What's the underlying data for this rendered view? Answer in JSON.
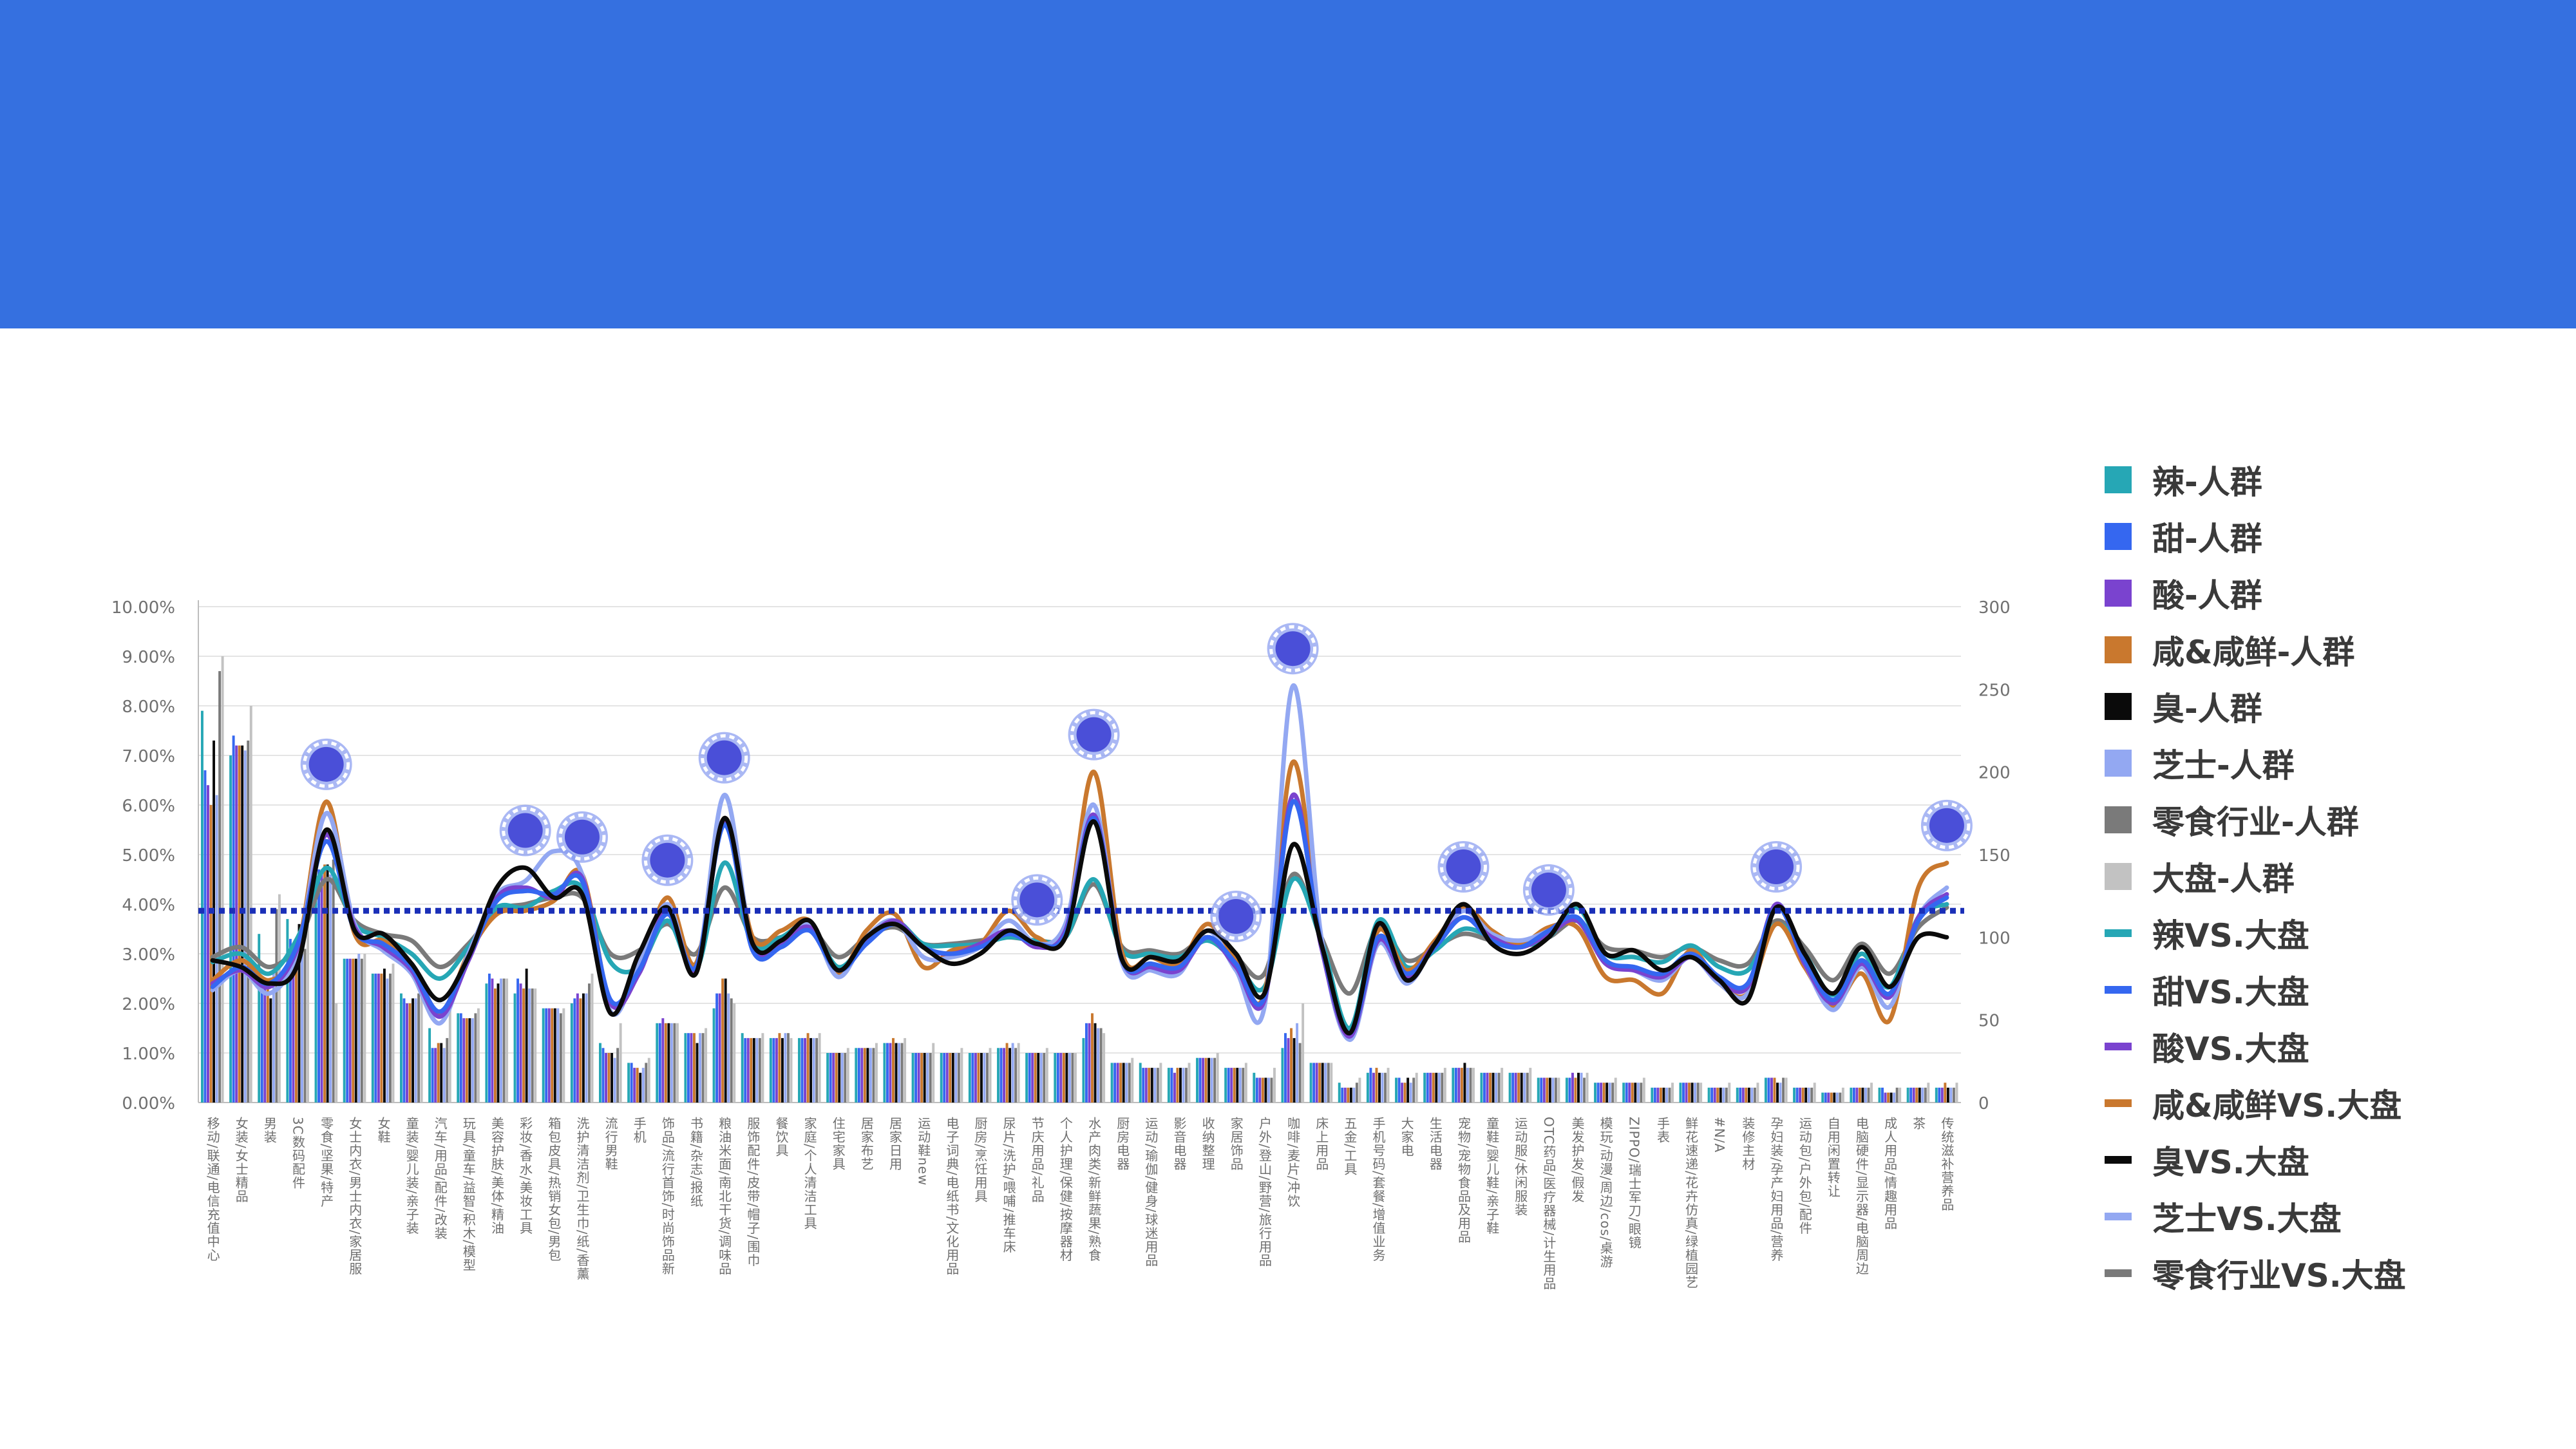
{
  "colors": {
    "header": "#3570e0",
    "reference_line": "#1a2fb8",
    "marker": "#4a4fd8"
  },
  "legend": {
    "items": [
      {
        "label": "辣-人群",
        "kind": "bar",
        "color": "#26a7b5"
      },
      {
        "label": "甜-人群",
        "kind": "bar",
        "color": "#3567f0"
      },
      {
        "label": "酸-人群",
        "kind": "bar",
        "color": "#7a43cf"
      },
      {
        "label": "咸&咸鲜-人群",
        "kind": "bar",
        "color": "#c9782e"
      },
      {
        "label": "臭-人群",
        "kind": "bar",
        "color": "#0a0a0a"
      },
      {
        "label": "芝士-人群",
        "kind": "bar",
        "color": "#93a8f2"
      },
      {
        "label": "零食行业-人群",
        "kind": "bar",
        "color": "#7a7a7a"
      },
      {
        "label": "大盘-人群",
        "kind": "bar",
        "color": "#c2c2c2"
      },
      {
        "label": "辣VS.大盘",
        "kind": "line",
        "color": "#26a7b5"
      },
      {
        "label": "甜VS.大盘",
        "kind": "line",
        "color": "#3567f0"
      },
      {
        "label": "酸VS.大盘",
        "kind": "line",
        "color": "#7a43cf"
      },
      {
        "label": "咸&咸鲜VS.大盘",
        "kind": "line",
        "color": "#c9782e"
      },
      {
        "label": "臭VS.大盘",
        "kind": "line",
        "color": "#0a0a0a"
      },
      {
        "label": "芝士VS.大盘",
        "kind": "line",
        "color": "#93a8f2"
      },
      {
        "label": "零食行业VS.大盘",
        "kind": "line",
        "color": "#7a7a7a"
      }
    ]
  },
  "chart_data": {
    "type": "bar",
    "title": "",
    "left_axis": {
      "ticks": [
        "0.00%",
        "1.00%",
        "2.00%",
        "3.00%",
        "4.00%",
        "5.00%",
        "6.00%",
        "7.00%",
        "8.00%",
        "9.00%",
        "10.00%"
      ],
      "min": 0,
      "max": 10
    },
    "right_axis": {
      "ticks": [
        "0",
        "50",
        "100",
        "150",
        "200",
        "250",
        "300"
      ],
      "min": 0,
      "max": 300
    },
    "reference_line": {
      "axis": "right",
      "value": 116,
      "style": "dotted"
    },
    "grid": true,
    "legend_position": "right",
    "categories": [
      "移动/联通/电信充值中心",
      "女装/女士精品",
      "男装",
      "3C数码配件",
      "零食/坚果/特产",
      "女士内衣/男士内衣/家居服",
      "女鞋",
      "童装/婴儿装/亲子装",
      "汽车/用品/配件/改装",
      "玩具/童车/益智/积木/模型",
      "美容护肤/美体/精油",
      "彩妆/香水/美妆工具",
      "箱包皮具/热销女包/男包",
      "洗护清洁剂/卫生巾/纸/香薰",
      "流行男鞋",
      "手机",
      "饰品/流行首饰/时尚饰品新",
      "书籍/杂志/报纸",
      "粮油米面/南北干货/调味品",
      "服饰配件/皮带/帽子/围巾",
      "餐饮具",
      "家庭/个人清洁工具",
      "住宅家具",
      "居家布艺",
      "居家日用",
      "运动鞋new",
      "电子词典/电纸书/文化用品",
      "厨房/烹饪用具",
      "尿片/洗护/喂哺/推车床",
      "节庆用品/礼品",
      "个人护理/保健/按摩器材",
      "水产肉类/新鲜蔬果/熟食",
      "厨房电器",
      "运动/瑜伽/健身/球迷用品",
      "影音电器",
      "收纳整理",
      "家居饰品",
      "户外/登山/野营/旅行用品",
      "咖啡/麦片/冲饮",
      "床上用品",
      "五金/工具",
      "手机号码/套餐/增值业务",
      "大家电",
      "生活电器",
      "宠物/宠物食品及用品",
      "童鞋/婴儿鞋/亲子鞋",
      "运动服/休闲服装",
      "OTC药品/医疗器械/计生用品",
      "美发护发/假发",
      "模玩/动漫/周边/cos/桌游",
      "ZIPPO/瑞士军刀/眼镜",
      "手表",
      "鲜花速递/花卉仿真/绿植园艺",
      "#N/A",
      "装修主材",
      "孕妇装/孕产妇用品/营养",
      "运动包/户外包/配件",
      "自用闲置转让",
      "电脑硬件/显示器/电脑周边",
      "成人用品/情趣用品",
      "茶",
      "传统滋补营养品"
    ],
    "label_categories": [
      "移动/联通/电信充值中心",
      "女装/女士精品",
      "男装",
      "3C数码配件",
      "零食/坚果/特产",
      "女士内衣/男士内衣/家居服",
      "女鞋",
      "童装/婴儿装/亲子装",
      "汽车/用品/配件/改装",
      "玩具/童车/益智/积木/模型",
      "美容护肤/美体/精油",
      "彩妆/香水/美妆工具",
      "箱包皮具/热销女包/男包",
      "洗护清洁剂/卫生巾/纸/香薰",
      "流行男鞋",
      "手机",
      "饰品/流行首饰/时尚饰品新",
      "书籍/杂志/报纸",
      "粮油米面/南北干货/调味品",
      "服饰配件/皮带/帽子/围巾",
      "餐饮具",
      "家庭/个人清洁工具",
      "住宅家具",
      "居家布艺",
      "居家日用",
      "运动鞋new",
      "电子词典/电纸书/文化用品",
      "厨房/烹饪用具",
      "尿片/洗护/喂哺/推车床",
      "节庆用品/礼品",
      "个人护理/保健/按摩器材",
      "水产肉类/新鲜蔬果/熟食",
      "厨房电器",
      "运动/瑜伽/健身/球迷用品",
      "影音电器",
      "收纳整理",
      "家居饰品",
      "户外/登山/野营/旅行用品",
      "咖啡/麦片/冲饮",
      "床上用品",
      "五金/工具",
      "手机号码/套餐/增值业务",
      "大家电",
      "生活电器",
      "宠物/宠物食品及用品",
      "童鞋/婴儿鞋/亲子鞋",
      "运动服/休闲服装",
      "OTC药品/医疗器械/计生用品",
      "美发护发/假发",
      "模玩/动漫/周边/cos/桌游",
      "ZIPPO/瑞士军刀/眼镜",
      "手表",
      "鲜花速递/花卉仿真/绿植园艺",
      "#N/A",
      "装修主材",
      "孕妇装/孕产妇用品/营养",
      "运动包/户外包/配件",
      "自用闲置转让",
      "电脑硬件/显示器/电脑周边",
      "成人用品/情趣用品",
      "茶",
      "传统滋补营养品"
    ],
    "bar_groups_pct": [
      [
        7.9,
        6.7,
        6.4,
        6.0,
        7.3,
        6.2,
        8.7,
        9.0
      ],
      [
        7.0,
        7.4,
        7.2,
        7.2,
        7.2,
        7.1,
        7.3,
        8.0
      ],
      [
        3.4,
        2.4,
        2.4,
        2.3,
        2.1,
        2.6,
        3.9,
        4.2
      ],
      [
        3.7,
        3.3,
        3.0,
        3.2,
        3.6,
        3.0,
        3.1,
        3.6
      ],
      [
        4.7,
        4.7,
        4.7,
        4.8,
        4.8,
        4.6,
        4.9,
        2.0
      ],
      [
        2.9,
        2.9,
        2.9,
        2.9,
        2.9,
        3.0,
        2.9,
        3.0
      ],
      [
        2.6,
        2.6,
        2.6,
        2.6,
        2.7,
        2.5,
        2.6,
        2.8
      ],
      [
        2.2,
        2.1,
        2.0,
        2.0,
        2.1,
        2.1,
        2.2,
        2.3
      ],
      [
        1.5,
        1.1,
        1.1,
        1.2,
        1.2,
        1.1,
        1.3,
        1.9
      ],
      [
        1.8,
        1.8,
        1.7,
        1.7,
        1.7,
        1.7,
        1.8,
        1.9
      ],
      [
        2.4,
        2.6,
        2.5,
        2.3,
        2.4,
        2.5,
        2.5,
        2.5
      ],
      [
        2.2,
        2.5,
        2.4,
        2.3,
        2.7,
        2.3,
        2.3,
        2.3
      ],
      [
        1.9,
        1.9,
        1.9,
        1.9,
        1.9,
        1.9,
        1.8,
        1.9
      ],
      [
        2.0,
        2.1,
        2.2,
        2.1,
        2.2,
        2.2,
        2.4,
        2.6
      ],
      [
        1.2,
        1.1,
        1.0,
        1.0,
        1.0,
        0.9,
        1.1,
        1.6
      ],
      [
        0.8,
        0.8,
        0.7,
        0.7,
        0.6,
        0.7,
        0.8,
        0.9
      ],
      [
        1.6,
        1.6,
        1.7,
        1.6,
        1.6,
        1.6,
        1.6,
        1.6
      ],
      [
        1.4,
        1.4,
        1.4,
        1.4,
        1.2,
        1.4,
        1.4,
        1.5
      ],
      [
        1.9,
        2.2,
        2.2,
        2.5,
        2.5,
        2.2,
        2.1,
        2.0
      ],
      [
        1.4,
        1.3,
        1.3,
        1.3,
        1.3,
        1.3,
        1.3,
        1.4
      ],
      [
        1.3,
        1.3,
        1.3,
        1.4,
        1.3,
        1.4,
        1.4,
        1.3
      ],
      [
        1.3,
        1.3,
        1.3,
        1.4,
        1.3,
        1.3,
        1.3,
        1.4
      ],
      [
        1.0,
        1.0,
        1.0,
        1.0,
        1.0,
        1.0,
        1.0,
        1.1
      ],
      [
        1.1,
        1.1,
        1.1,
        1.1,
        1.1,
        1.1,
        1.1,
        1.2
      ],
      [
        1.2,
        1.2,
        1.2,
        1.3,
        1.2,
        1.2,
        1.2,
        1.3
      ],
      [
        1.0,
        1.0,
        1.0,
        1.0,
        1.0,
        1.0,
        1.0,
        1.2
      ],
      [
        1.0,
        1.0,
        1.0,
        1.0,
        1.0,
        1.0,
        1.0,
        1.1
      ],
      [
        1.0,
        1.0,
        1.0,
        1.0,
        1.0,
        1.0,
        1.0,
        1.1
      ],
      [
        1.1,
        1.1,
        1.1,
        1.2,
        1.1,
        1.2,
        1.1,
        1.2
      ],
      [
        1.0,
        1.0,
        1.0,
        1.0,
        1.0,
        1.0,
        1.0,
        1.1
      ],
      [
        1.0,
        1.0,
        1.0,
        1.0,
        1.0,
        1.0,
        1.0,
        1.0
      ],
      [
        1.3,
        1.6,
        1.6,
        1.8,
        1.6,
        1.5,
        1.5,
        1.4
      ],
      [
        0.8,
        0.8,
        0.8,
        0.8,
        0.8,
        0.8,
        0.8,
        0.9
      ],
      [
        0.8,
        0.7,
        0.7,
        0.7,
        0.7,
        0.7,
        0.7,
        0.8
      ],
      [
        0.7,
        0.7,
        0.6,
        0.7,
        0.7,
        0.7,
        0.7,
        0.8
      ],
      [
        0.9,
        0.9,
        0.9,
        0.9,
        0.9,
        0.9,
        0.9,
        1.0
      ],
      [
        0.7,
        0.7,
        0.7,
        0.7,
        0.7,
        0.7,
        0.7,
        0.8
      ],
      [
        0.6,
        0.5,
        0.5,
        0.5,
        0.5,
        0.5,
        0.5,
        0.7
      ],
      [
        1.1,
        1.4,
        1.3,
        1.5,
        1.3,
        1.6,
        1.2,
        2.0
      ],
      [
        0.8,
        0.8,
        0.8,
        0.8,
        0.8,
        0.8,
        0.8,
        0.8
      ],
      [
        0.4,
        0.3,
        0.3,
        0.3,
        0.3,
        0.3,
        0.4,
        0.5
      ],
      [
        0.6,
        0.7,
        0.6,
        0.7,
        0.6,
        0.6,
        0.6,
        0.7
      ],
      [
        0.5,
        0.5,
        0.4,
        0.4,
        0.5,
        0.4,
        0.5,
        0.6
      ],
      [
        0.6,
        0.6,
        0.6,
        0.6,
        0.6,
        0.6,
        0.6,
        0.7
      ],
      [
        0.7,
        0.7,
        0.7,
        0.7,
        0.8,
        0.7,
        0.7,
        0.7
      ],
      [
        0.6,
        0.6,
        0.6,
        0.6,
        0.6,
        0.6,
        0.6,
        0.7
      ],
      [
        0.6,
        0.6,
        0.6,
        0.6,
        0.6,
        0.6,
        0.6,
        0.7
      ],
      [
        0.5,
        0.5,
        0.5,
        0.5,
        0.5,
        0.5,
        0.5,
        0.5
      ],
      [
        0.5,
        0.5,
        0.6,
        0.5,
        0.6,
        0.6,
        0.5,
        0.6
      ],
      [
        0.4,
        0.4,
        0.4,
        0.4,
        0.4,
        0.4,
        0.4,
        0.5
      ],
      [
        0.4,
        0.4,
        0.4,
        0.4,
        0.4,
        0.4,
        0.4,
        0.5
      ],
      [
        0.3,
        0.3,
        0.3,
        0.3,
        0.3,
        0.3,
        0.3,
        0.4
      ],
      [
        0.4,
        0.4,
        0.4,
        0.4,
        0.4,
        0.4,
        0.4,
        0.4
      ],
      [
        0.3,
        0.3,
        0.3,
        0.3,
        0.3,
        0.3,
        0.3,
        0.4
      ],
      [
        0.3,
        0.3,
        0.3,
        0.3,
        0.3,
        0.3,
        0.3,
        0.4
      ],
      [
        0.5,
        0.5,
        0.5,
        0.5,
        0.4,
        0.4,
        0.5,
        0.5
      ],
      [
        0.3,
        0.3,
        0.3,
        0.3,
        0.3,
        0.3,
        0.3,
        0.4
      ],
      [
        0.2,
        0.2,
        0.2,
        0.2,
        0.2,
        0.2,
        0.2,
        0.3
      ],
      [
        0.3,
        0.3,
        0.3,
        0.3,
        0.3,
        0.3,
        0.3,
        0.4
      ],
      [
        0.3,
        0.3,
        0.2,
        0.2,
        0.2,
        0.2,
        0.3,
        0.3
      ],
      [
        0.3,
        0.3,
        0.3,
        0.3,
        0.3,
        0.3,
        0.3,
        0.4
      ],
      [
        0.3,
        0.3,
        0.3,
        0.4,
        0.3,
        0.3,
        0.3,
        0.4
      ]
    ],
    "line_series_index": [
      {
        "name": "辣VS.大盘",
        "values": [
          85,
          90,
          78,
          100,
          142,
          108,
          100,
          90,
          75,
          94,
          118,
          118,
          128,
          130,
          85,
          82,
          110,
          80,
          145,
          96,
          100,
          108,
          82,
          98,
          110,
          96,
          95,
          96,
          100,
          98,
          100,
          135,
          92,
          90,
          88,
          98,
          85,
          70,
          135,
          98,
          45,
          110,
          82,
          92,
          105,
          100,
          95,
          100,
          118,
          90,
          88,
          85,
          95,
          82,
          80,
          108,
          90,
          65,
          90,
          70,
          112,
          120
        ]
      },
      {
        "name": "甜VS.大盘",
        "values": [
          70,
          82,
          72,
          96,
          158,
          104,
          96,
          82,
          55,
          88,
          122,
          128,
          126,
          134,
          62,
          80,
          114,
          82,
          168,
          92,
          94,
          104,
          80,
          96,
          108,
          94,
          90,
          94,
          102,
          96,
          102,
          172,
          86,
          84,
          82,
          100,
          84,
          64,
          182,
          96,
          42,
          100,
          78,
          94,
          112,
          98,
          94,
          104,
          112,
          86,
          82,
          78,
          90,
          76,
          72,
          118,
          86,
          62,
          86,
          66,
          110,
          124
        ]
      },
      {
        "name": "酸VS.大盘",
        "values": [
          72,
          80,
          70,
          94,
          162,
          106,
          94,
          80,
          52,
          86,
          124,
          130,
          124,
          136,
          60,
          78,
          116,
          80,
          170,
          94,
          96,
          106,
          80,
          98,
          110,
          94,
          90,
          96,
          104,
          94,
          104,
          174,
          86,
          82,
          80,
          100,
          82,
          62,
          186,
          94,
          40,
          98,
          76,
          96,
          112,
          100,
          94,
          102,
          110,
          84,
          80,
          76,
          88,
          74,
          70,
          120,
          84,
          60,
          84,
          64,
          112,
          126
        ]
      },
      {
        "name": "咸&咸鲜VS.大盘",
        "values": [
          74,
          86,
          74,
          94,
          182,
          102,
          98,
          84,
          54,
          90,
          114,
          116,
          122,
          138,
          60,
          82,
          124,
          84,
          172,
          100,
          104,
          110,
          78,
          104,
          114,
          82,
          92,
          96,
          116,
          100,
          104,
          200,
          90,
          88,
          84,
          108,
          86,
          66,
          206,
          98,
          42,
          104,
          80,
          98,
          118,
          104,
          96,
          106,
          106,
          76,
          74,
          66,
          92,
          72,
          66,
          108,
          82,
          58,
          78,
          50,
          130,
          145
        ]
      },
      {
        "name": "臭VS.大盘",
        "values": [
          86,
          82,
          72,
          84,
          165,
          104,
          102,
          84,
          62,
          88,
          130,
          142,
          124,
          126,
          54,
          90,
          118,
          78,
          172,
          96,
          98,
          110,
          80,
          100,
          108,
          94,
          84,
          90,
          104,
          96,
          100,
          170,
          86,
          88,
          86,
          104,
          90,
          66,
          156,
          96,
          42,
          108,
          74,
          96,
          120,
          96,
          90,
          100,
          120,
          90,
          92,
          80,
          88,
          74,
          62,
          118,
          90,
          66,
          94,
          70,
          100,
          100
        ]
      },
      {
        "name": "芝士VS.大盘",
        "values": [
          68,
          80,
          66,
          92,
          175,
          108,
          92,
          78,
          48,
          90,
          126,
          134,
          152,
          138,
          55,
          84,
          120,
          80,
          186,
          94,
          98,
          108,
          76,
          100,
          110,
          88,
          88,
          94,
          110,
          96,
          108,
          180,
          84,
          80,
          78,
          104,
          80,
          58,
          252,
          100,
          38,
          96,
          72,
          96,
          116,
          102,
          98,
          104,
          112,
          86,
          80,
          74,
          88,
          72,
          66,
          120,
          84,
          56,
          82,
          58,
          112,
          130
        ]
      },
      {
        "name": "零食行业VS.大盘",
        "values": [
          88,
          94,
          82,
          96,
          135,
          110,
          102,
          98,
          82,
          96,
          116,
          120,
          124,
          124,
          90,
          92,
          108,
          90,
          130,
          100,
          100,
          106,
          88,
          100,
          106,
          96,
          96,
          98,
          100,
          98,
          100,
          132,
          94,
          92,
          90,
          100,
          88,
          78,
          138,
          100,
          66,
          106,
          86,
          94,
          102,
          98,
          96,
          100,
          110,
          94,
          92,
          88,
          94,
          86,
          84,
          110,
          94,
          74,
          96,
          78,
          106,
          118
        ]
      }
    ],
    "highlight_categories": [
      "零食/坚果/特产",
      "彩妆/香水/美妆工具",
      "洗护清洁剂/卫生巾/纸/香薰",
      "饰品/流行首饰/时尚饰品新",
      "粮油米面/南北干货/调味品",
      "节庆用品/礼品",
      "水产肉类/新鲜蔬果/熟食",
      "家居饰品",
      "咖啡/麦片/冲饮",
      "宠物/宠物食品及用品",
      "OTC药品/医疗器械/计生用品",
      "孕妇装/孕产妇用品/营养",
      "传统滋补营养品"
    ]
  }
}
